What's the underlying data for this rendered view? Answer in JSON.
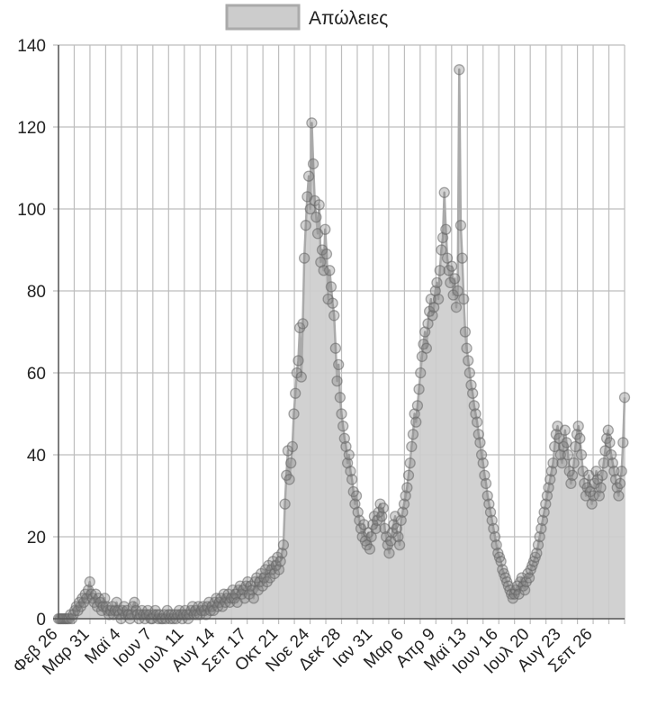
{
  "chart_data": {
    "type": "area",
    "title": "",
    "xlabel": "",
    "ylabel": "",
    "ylim": [
      0,
      140
    ],
    "yticks": [
      0,
      20,
      40,
      60,
      80,
      100,
      120,
      140
    ],
    "grid": true,
    "legend_position": "top-center",
    "x_tick_labels": [
      "Φεβ 26",
      "Μαρ 31",
      "Μαϊ 4",
      "Ιουν 7",
      "Ιουλ 11",
      "Αυγ 14",
      "Σεπ 17",
      "Οκτ 21",
      "Νοε 24",
      "Δεκ 28",
      "Ιαν 31",
      "Μαρ 6",
      "Απρ 9",
      "Μαϊ 13",
      "Ιουν 16",
      "Ιουλ 20",
      "Αυγ 23",
      "Σεπ 26"
    ],
    "series": [
      {
        "name": "Απώλειες",
        "color": "#bbbbbb",
        "values": [
          0,
          0,
          0,
          0,
          0,
          0,
          0,
          0,
          1,
          0,
          1,
          2,
          3,
          2,
          4,
          3,
          5,
          4,
          6,
          5,
          7,
          9,
          6,
          5,
          4,
          6,
          3,
          5,
          4,
          2,
          3,
          5,
          3,
          2,
          1,
          2,
          3,
          1,
          2,
          4,
          2,
          1,
          0,
          2,
          3,
          1,
          2,
          1,
          0,
          1,
          3,
          4,
          2,
          1,
          0,
          1,
          2,
          1,
          0,
          1,
          2,
          1,
          0,
          0,
          1,
          2,
          1,
          0,
          1,
          0,
          0,
          1,
          0,
          2,
          1,
          0,
          1,
          0,
          1,
          0,
          1,
          2,
          1,
          0,
          1,
          2,
          1,
          0,
          1,
          2,
          3,
          1,
          2,
          1,
          3,
          1,
          2,
          3,
          2,
          1,
          3,
          4,
          2,
          3,
          2,
          4,
          5,
          3,
          4,
          5,
          3,
          6,
          4,
          5,
          6,
          4,
          5,
          7,
          5,
          6,
          4,
          7,
          8,
          6,
          7,
          5,
          8,
          9,
          6,
          8,
          7,
          5,
          9,
          10,
          7,
          9,
          11,
          8,
          10,
          12,
          9,
          13,
          10,
          12,
          14,
          11,
          13,
          15,
          12,
          14,
          16,
          18,
          28,
          35,
          41,
          34,
          38,
          42,
          50,
          55,
          60,
          63,
          71,
          59,
          72,
          88,
          96,
          103,
          108,
          100,
          121,
          111,
          102,
          98,
          94,
          101,
          87,
          90,
          85,
          95,
          89,
          78,
          85,
          81,
          77,
          74,
          66,
          58,
          62,
          54,
          50,
          47,
          44,
          42,
          38,
          40,
          36,
          34,
          31,
          28,
          30,
          26,
          24,
          22,
          20,
          23,
          19,
          18,
          21,
          17,
          20,
          23,
          25,
          22,
          24,
          26,
          28,
          25,
          27,
          22,
          20,
          18,
          16,
          19,
          21,
          23,
          25,
          22,
          20,
          18,
          24,
          26,
          28,
          30,
          32,
          35,
          38,
          42,
          45,
          50,
          48,
          52,
          56,
          60,
          64,
          67,
          70,
          66,
          72,
          75,
          78,
          74,
          76,
          80,
          82,
          78,
          85,
          90,
          93,
          104,
          95,
          88,
          85,
          82,
          86,
          79,
          83,
          76,
          80,
          134,
          96,
          88,
          78,
          70,
          66,
          63,
          60,
          57,
          55,
          52,
          50,
          48,
          45,
          43,
          40,
          38,
          35,
          33,
          30,
          28,
          26,
          24,
          22,
          20,
          18,
          16,
          15,
          14,
          12,
          11,
          10,
          9,
          8,
          7,
          6,
          5,
          6,
          7,
          8,
          6,
          9,
          10,
          8,
          7,
          9,
          11,
          10,
          12,
          13,
          14,
          15,
          16,
          18,
          20,
          22,
          24,
          26,
          28,
          30,
          32,
          34,
          36,
          38,
          42,
          45,
          47,
          44,
          40,
          38,
          42,
          46,
          43,
          40,
          36,
          33,
          35,
          38,
          42,
          45,
          47,
          44,
          40,
          36,
          33,
          30,
          32,
          35,
          31,
          28,
          30,
          33,
          36,
          34,
          30,
          32,
          35,
          38,
          41,
          44,
          46,
          43,
          40,
          38,
          36,
          34,
          32,
          30,
          33,
          36,
          43,
          54
        ]
      }
    ]
  }
}
